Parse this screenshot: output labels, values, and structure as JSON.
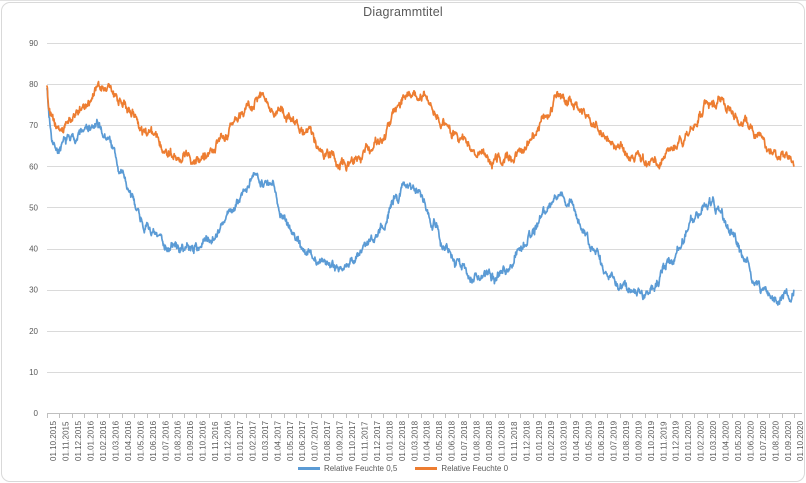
{
  "chart": {
    "title": "Diagrammtitel"
  },
  "chart_data": {
    "type": "line",
    "title": "Diagrammtitel",
    "xlabel": "",
    "ylabel": "",
    "ylim": [
      0,
      90
    ],
    "y_ticks": [
      0,
      10,
      20,
      30,
      40,
      50,
      60,
      70,
      80,
      90
    ],
    "grid": "horizontal",
    "legend_position": "bottom",
    "x_label_rotation": -90,
    "grid_color": "#dadada",
    "axis_color": "#bfbfbf",
    "text_color": "#595959",
    "x_labels": [
      "01.10.2015",
      "01.11.2015",
      "01.12.2015",
      "01.01.2016",
      "01.02.2016",
      "01.03.2016",
      "01.04.2016",
      "01.05.2016",
      "01.06.2016",
      "01.07.2016",
      "01.08.2016",
      "01.09.2016",
      "01.10.2016",
      "01.11.2016",
      "01.12.2016",
      "01.01.2017",
      "01.02.2017",
      "01.03.2017",
      "01.04.2017",
      "01.05.2017",
      "01.06.2017",
      "01.07.2017",
      "01.08.2017",
      "01.09.2017",
      "01.10.2017",
      "01.11.2017",
      "01.12.2017",
      "01.01.2018",
      "01.02.2018",
      "01.03.2018",
      "01.04.2018",
      "01.05.2018",
      "01.06.2018",
      "01.07.2018",
      "01.08.2018",
      "01.09.2018",
      "01.10.2018",
      "01.11.2018",
      "01.12.2018",
      "01.01.2019",
      "01.02.2019",
      "01.03.2019",
      "01.04.2019",
      "01.05.2019",
      "01.06.2019",
      "01.07.2019",
      "01.08.2019",
      "01.09.2019",
      "01.10.2019",
      "01.11.2019",
      "01.12.2019",
      "01.01.2020",
      "01.02.2020",
      "01.03.2020",
      "01.04.2020",
      "01.05.2020",
      "01.06.2020",
      "01.07.2020",
      "01.08.2020",
      "01.09.2020",
      "01.10.2020"
    ],
    "series": [
      {
        "name": "Relative Feuchte 0,5",
        "color": "#5B9BD5",
        "start_value": 80,
        "monthly_values": [
          67,
          64.5,
          66.8,
          68.8,
          69.3,
          66.5,
          58,
          51,
          45.5,
          42,
          40.5,
          40,
          40.3,
          42.5,
          45.5,
          49.5,
          54.5,
          57.8,
          55,
          48.5,
          42.5,
          38.5,
          37,
          36.3,
          35.8,
          38,
          42,
          46.5,
          52,
          56,
          54,
          47,
          40.5,
          36,
          33.8,
          33,
          33,
          35.5,
          40,
          44.5,
          49.5,
          53.3,
          51.5,
          45,
          38.5,
          33.5,
          31,
          30,
          29.3,
          31.5,
          37,
          42.5,
          47.5,
          52,
          50,
          43.5,
          36.5,
          31,
          28.5,
          28,
          28.8
        ]
      },
      {
        "name": "Relative Feuchte 0",
        "color": "#ED7D31",
        "start_value": 80,
        "monthly_values": [
          71,
          68.5,
          71.5,
          75,
          78.8,
          78.5,
          75.5,
          72,
          68.5,
          65.5,
          63.8,
          63,
          62.5,
          63.5,
          66,
          69.5,
          73.5,
          77,
          75.8,
          72.8,
          69.5,
          66.5,
          64,
          62.3,
          61,
          62,
          64,
          67.5,
          73,
          78,
          76.5,
          73.8,
          70.5,
          67,
          64.3,
          62.3,
          61,
          61.5,
          63.5,
          67,
          71.5,
          76,
          76,
          73.5,
          70.3,
          66.8,
          64.3,
          62.3,
          60.5,
          61,
          63,
          66.5,
          70.5,
          74.5,
          76,
          74,
          71,
          68,
          65,
          62.5,
          61
        ]
      }
    ],
    "noise_hint": {
      "smooth": 0.88,
      "innovation": 1.5,
      "jitter": 0.8,
      "seeds": [
        7,
        1234
      ]
    }
  }
}
